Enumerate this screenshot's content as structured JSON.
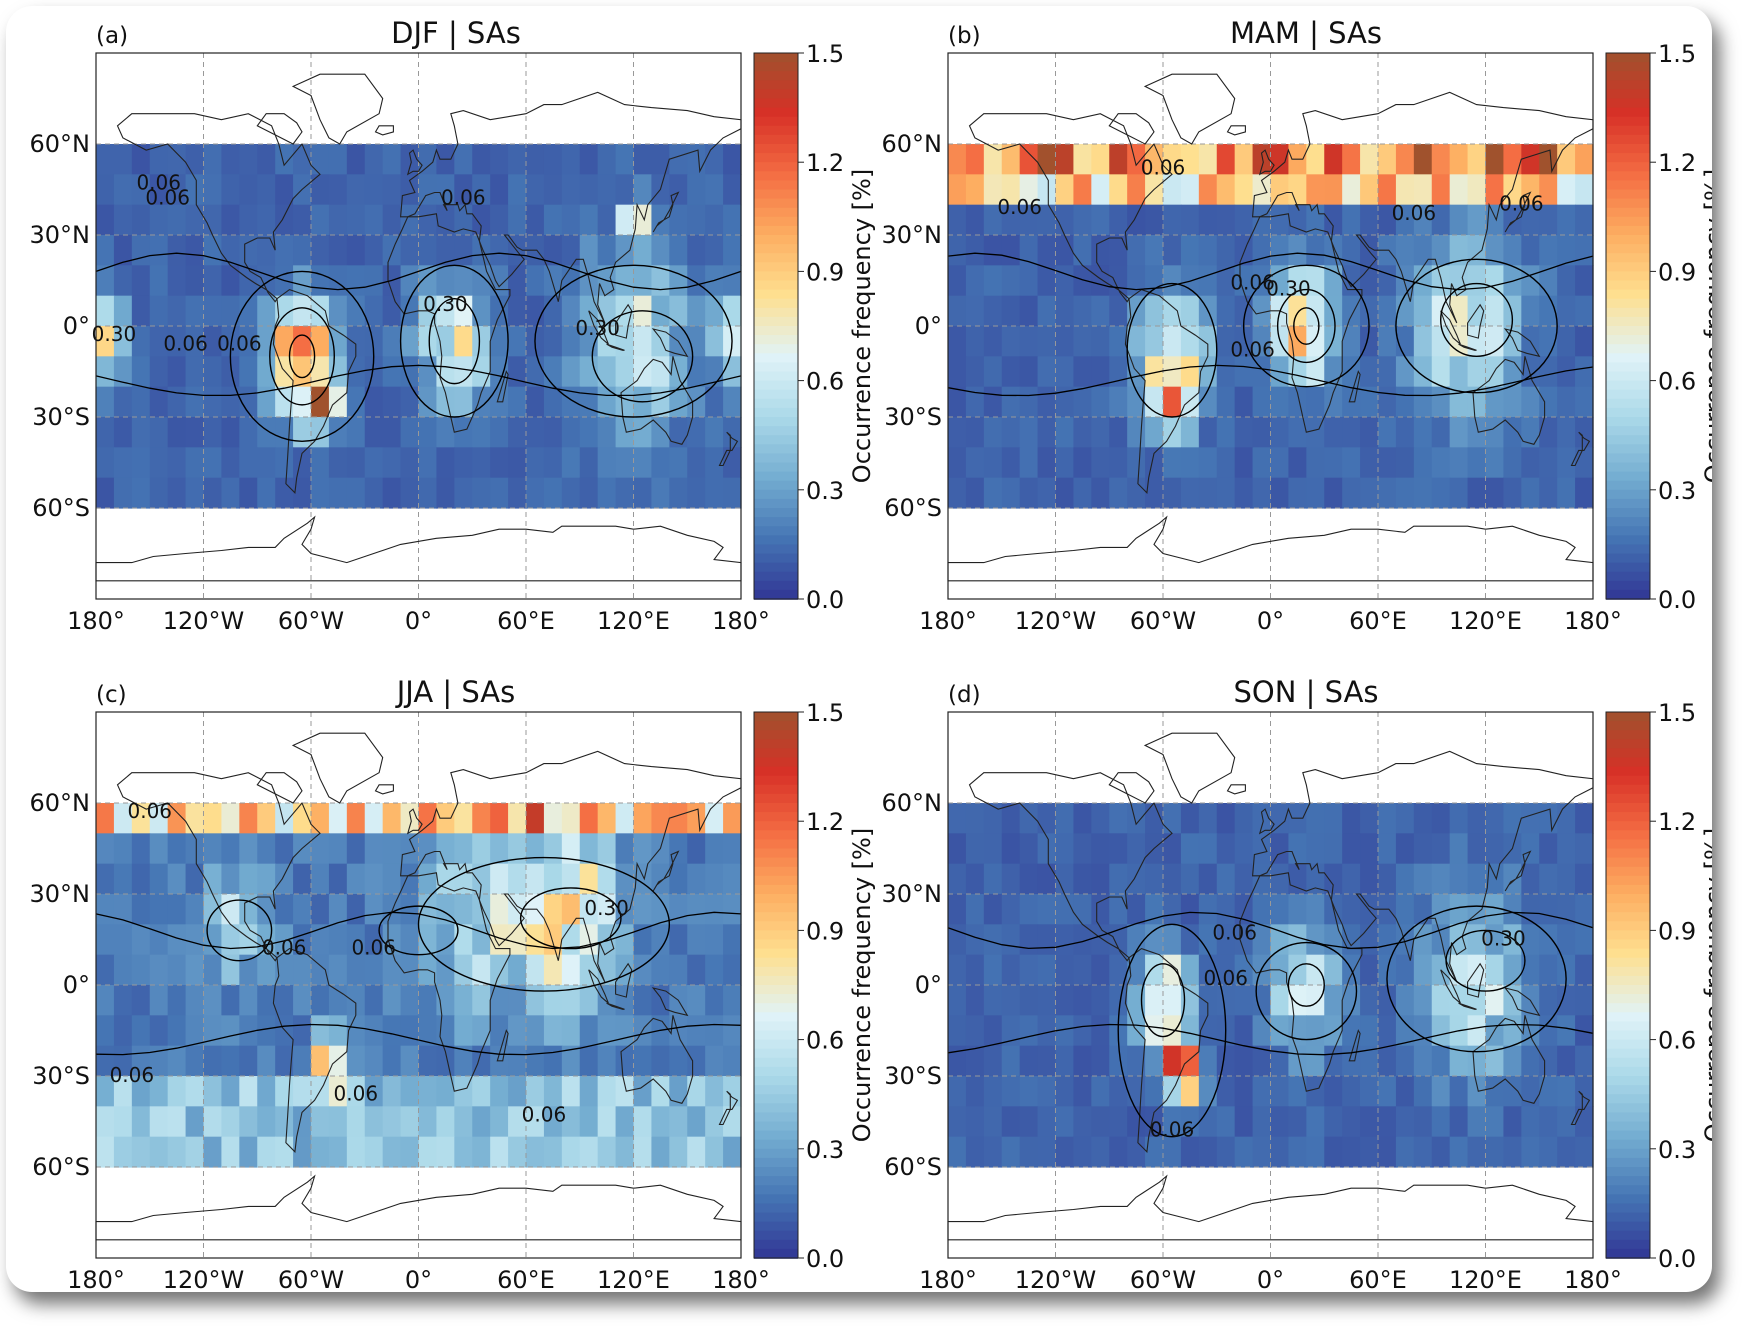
{
  "figure": {
    "colorbar": {
      "label": "Occurrence frequency [%]",
      "ticks": [
        "0.0",
        "0.3",
        "0.6",
        "0.9",
        "1.2",
        "1.5"
      ],
      "range": [
        0,
        1.5
      ],
      "colormap": [
        "#313695",
        "#4575b4",
        "#74add1",
        "#abd9e9",
        "#e0f3f8",
        "#fee090",
        "#fdae61",
        "#f46d43",
        "#d73027",
        "#a0522d"
      ]
    },
    "contour_color": "#000000",
    "land_outline_color": "#222222"
  },
  "chart_data": [
    {
      "type": "heatmap",
      "panel": "(a)",
      "title": "DJF | SAs",
      "x_ticks": [
        "180°",
        "120°W",
        "60°W",
        "0°",
        "60°E",
        "120°E",
        "180°"
      ],
      "y_ticks": [
        "60°N",
        "30°N",
        "0°",
        "30°S",
        "60°S"
      ],
      "xlim": [
        -180,
        180
      ],
      "ylim": [
        -90,
        90
      ],
      "data_lat_range": [
        -60,
        60
      ],
      "grid_resolution_deg": 10,
      "background": 0.12,
      "hotspots": [
        {
          "lon": -65,
          "lat": -10,
          "value": 1.1,
          "sigma": 12
        },
        {
          "lon": -55,
          "lat": -25,
          "value": 0.8,
          "sigma": 7
        },
        {
          "lon": 20,
          "lat": -5,
          "value": 0.55,
          "sigma": 14
        },
        {
          "lon": 120,
          "lat": -5,
          "value": 0.5,
          "sigma": 20
        },
        {
          "lon": -178,
          "lat": -5,
          "value": 0.6,
          "sigma": 10
        },
        {
          "lon": 120,
          "lat": 35,
          "value": 0.6,
          "sigma": 5
        }
      ],
      "contour_labels": [
        {
          "text": "0.06",
          "lon": -145,
          "lat": 45
        },
        {
          "text": "0.06",
          "lon": -140,
          "lat": 40
        },
        {
          "text": "0.06",
          "lon": 25,
          "lat": 40
        },
        {
          "text": "0.30",
          "lon": 15,
          "lat": 5
        },
        {
          "text": "0.30",
          "lon": -170,
          "lat": -5
        },
        {
          "text": "0.06",
          "lon": -130,
          "lat": -8
        },
        {
          "text": "0.06",
          "lon": -100,
          "lat": -8
        },
        {
          "text": "0.30",
          "lon": 100,
          "lat": -3
        }
      ],
      "contours": [
        {
          "level": "0.06",
          "lon": -65,
          "lat": -10,
          "rx": 40,
          "ry": 28
        },
        {
          "level": "0.30",
          "lon": -65,
          "lat": -10,
          "rx": 18,
          "ry": 16
        },
        {
          "level": "0.60",
          "lon": -65,
          "lat": -10,
          "rx": 7,
          "ry": 7
        },
        {
          "level": "0.06",
          "lon": 20,
          "lat": -5,
          "rx": 30,
          "ry": 25
        },
        {
          "level": "0.30",
          "lon": 20,
          "lat": -5,
          "rx": 14,
          "ry": 14
        },
        {
          "level": "0.06",
          "lon": 120,
          "lat": -5,
          "rx": 55,
          "ry": 25
        },
        {
          "level": "0.30",
          "lon": 125,
          "lat": -10,
          "rx": 28,
          "ry": 15
        }
      ]
    },
    {
      "type": "heatmap",
      "panel": "(b)",
      "title": "MAM | SAs",
      "x_ticks": [
        "180°",
        "120°W",
        "60°W",
        "0°",
        "60°E",
        "120°E",
        "180°"
      ],
      "y_ticks": [
        "60°N",
        "30°N",
        "0°",
        "30°S",
        "60°S"
      ],
      "xlim": [
        -180,
        180
      ],
      "ylim": [
        -90,
        90
      ],
      "data_lat_range": [
        -60,
        60
      ],
      "grid_resolution_deg": 10,
      "background": 0.12,
      "north_band": {
        "lat_min": 40,
        "value": 1.25
      },
      "hotspots": [
        {
          "lon": 20,
          "lat": 0,
          "value": 0.85,
          "sigma": 12
        },
        {
          "lon": -55,
          "lat": -10,
          "value": 0.6,
          "sigma": 14
        },
        {
          "lon": 110,
          "lat": 0,
          "value": 0.5,
          "sigma": 20
        },
        {
          "lon": -55,
          "lat": -25,
          "value": 0.6,
          "sigma": 7
        }
      ],
      "contour_labels": [
        {
          "text": "0.06",
          "lon": -60,
          "lat": 50
        },
        {
          "text": "0.06",
          "lon": -140,
          "lat": 37
        },
        {
          "text": "0.06",
          "lon": 80,
          "lat": 35
        },
        {
          "text": "0.06",
          "lon": 140,
          "lat": 38
        },
        {
          "text": "0.06",
          "lon": -10,
          "lat": 12
        },
        {
          "text": "0.30",
          "lon": 10,
          "lat": 10
        },
        {
          "text": "0.06",
          "lon": -10,
          "lat": -10
        }
      ],
      "contours": [
        {
          "level": "0.06",
          "lon": 20,
          "lat": 0,
          "rx": 35,
          "ry": 20
        },
        {
          "level": "0.30",
          "lon": 20,
          "lat": 0,
          "rx": 16,
          "ry": 12
        },
        {
          "level": "0.60",
          "lon": 20,
          "lat": 0,
          "rx": 7,
          "ry": 6
        },
        {
          "level": "0.06",
          "lon": -55,
          "lat": -8,
          "rx": 25,
          "ry": 22
        },
        {
          "level": "0.06",
          "lon": 115,
          "lat": 0,
          "rx": 45,
          "ry": 22
        },
        {
          "level": "0.30",
          "lon": 115,
          "lat": 2,
          "rx": 20,
          "ry": 12
        }
      ]
    },
    {
      "type": "heatmap",
      "panel": "(c)",
      "title": "JJA | SAs",
      "x_ticks": [
        "180°",
        "120°W",
        "60°W",
        "0°",
        "60°E",
        "120°E",
        "180°"
      ],
      "y_ticks": [
        "60°N",
        "30°N",
        "0°",
        "30°S",
        "60°S"
      ],
      "xlim": [
        -180,
        180
      ],
      "ylim": [
        -90,
        90
      ],
      "data_lat_range": [
        -60,
        60
      ],
      "grid_resolution_deg": 10,
      "background": 0.18,
      "north_band": {
        "lat_min": 50,
        "value": 0.95
      },
      "south_band": {
        "lat_max": -35,
        "value": 0.4
      },
      "hotspots": [
        {
          "lon": 80,
          "lat": 25,
          "value": 0.65,
          "sigma": 20
        },
        {
          "lon": 30,
          "lat": 20,
          "value": 0.35,
          "sigma": 20
        },
        {
          "lon": -100,
          "lat": 20,
          "value": 0.4,
          "sigma": 12
        },
        {
          "lon": -50,
          "lat": -25,
          "value": 1.0,
          "sigma": 6
        }
      ],
      "contour_labels": [
        {
          "text": "0.06",
          "lon": -150,
          "lat": 55
        },
        {
          "text": "0.30",
          "lon": 105,
          "lat": 23
        },
        {
          "text": "0.06",
          "lon": -75,
          "lat": 10
        },
        {
          "text": "0.06",
          "lon": -25,
          "lat": 10
        },
        {
          "text": "0.06",
          "lon": -160,
          "lat": -32
        },
        {
          "text": "0.06",
          "lon": -35,
          "lat": -38
        },
        {
          "text": "0.06",
          "lon": 70,
          "lat": -45
        }
      ],
      "contours": [
        {
          "level": "0.06",
          "lon": 70,
          "lat": 20,
          "rx": 70,
          "ry": 22
        },
        {
          "level": "0.30",
          "lon": 85,
          "lat": 22,
          "rx": 28,
          "ry": 10
        },
        {
          "level": "0.06",
          "lon": -100,
          "lat": 18,
          "rx": 18,
          "ry": 10
        },
        {
          "level": "0.06",
          "lon": 0,
          "lat": 18,
          "rx": 22,
          "ry": 8
        }
      ]
    },
    {
      "type": "heatmap",
      "panel": "(d)",
      "title": "SON | SAs",
      "x_ticks": [
        "180°",
        "120°W",
        "60°W",
        "0°",
        "60°E",
        "120°E",
        "180°"
      ],
      "y_ticks": [
        "60°N",
        "30°N",
        "0°",
        "30°S",
        "60°S"
      ],
      "xlim": [
        -180,
        180
      ],
      "ylim": [
        -90,
        90
      ],
      "data_lat_range": [
        -60,
        60
      ],
      "grid_resolution_deg": 10,
      "background": 0.12,
      "hotspots": [
        {
          "lon": -60,
          "lat": -5,
          "value": 0.8,
          "sigma": 10
        },
        {
          "lon": -50,
          "lat": -28,
          "value": 1.2,
          "sigma": 7
        },
        {
          "lon": 20,
          "lat": 0,
          "value": 0.5,
          "sigma": 14
        },
        {
          "lon": 115,
          "lat": 0,
          "value": 0.45,
          "sigma": 20
        }
      ],
      "contour_labels": [
        {
          "text": "0.06",
          "lon": -20,
          "lat": 15
        },
        {
          "text": "0.30",
          "lon": 130,
          "lat": 13
        },
        {
          "text": "0.06",
          "lon": -25,
          "lat": 0
        },
        {
          "text": "0.06",
          "lon": -55,
          "lat": -50
        }
      ],
      "contours": [
        {
          "level": "0.06",
          "lon": -55,
          "lat": -15,
          "rx": 30,
          "ry": 35
        },
        {
          "level": "0.30",
          "lon": -60,
          "lat": -5,
          "rx": 12,
          "ry": 12
        },
        {
          "level": "0.06",
          "lon": 20,
          "lat": -2,
          "rx": 28,
          "ry": 16
        },
        {
          "level": "0.30",
          "lon": 20,
          "lat": 0,
          "rx": 10,
          "ry": 7
        },
        {
          "level": "0.06",
          "lon": 115,
          "lat": 2,
          "rx": 50,
          "ry": 24
        },
        {
          "level": "0.30",
          "lon": 120,
          "lat": 8,
          "rx": 22,
          "ry": 10
        }
      ]
    }
  ]
}
